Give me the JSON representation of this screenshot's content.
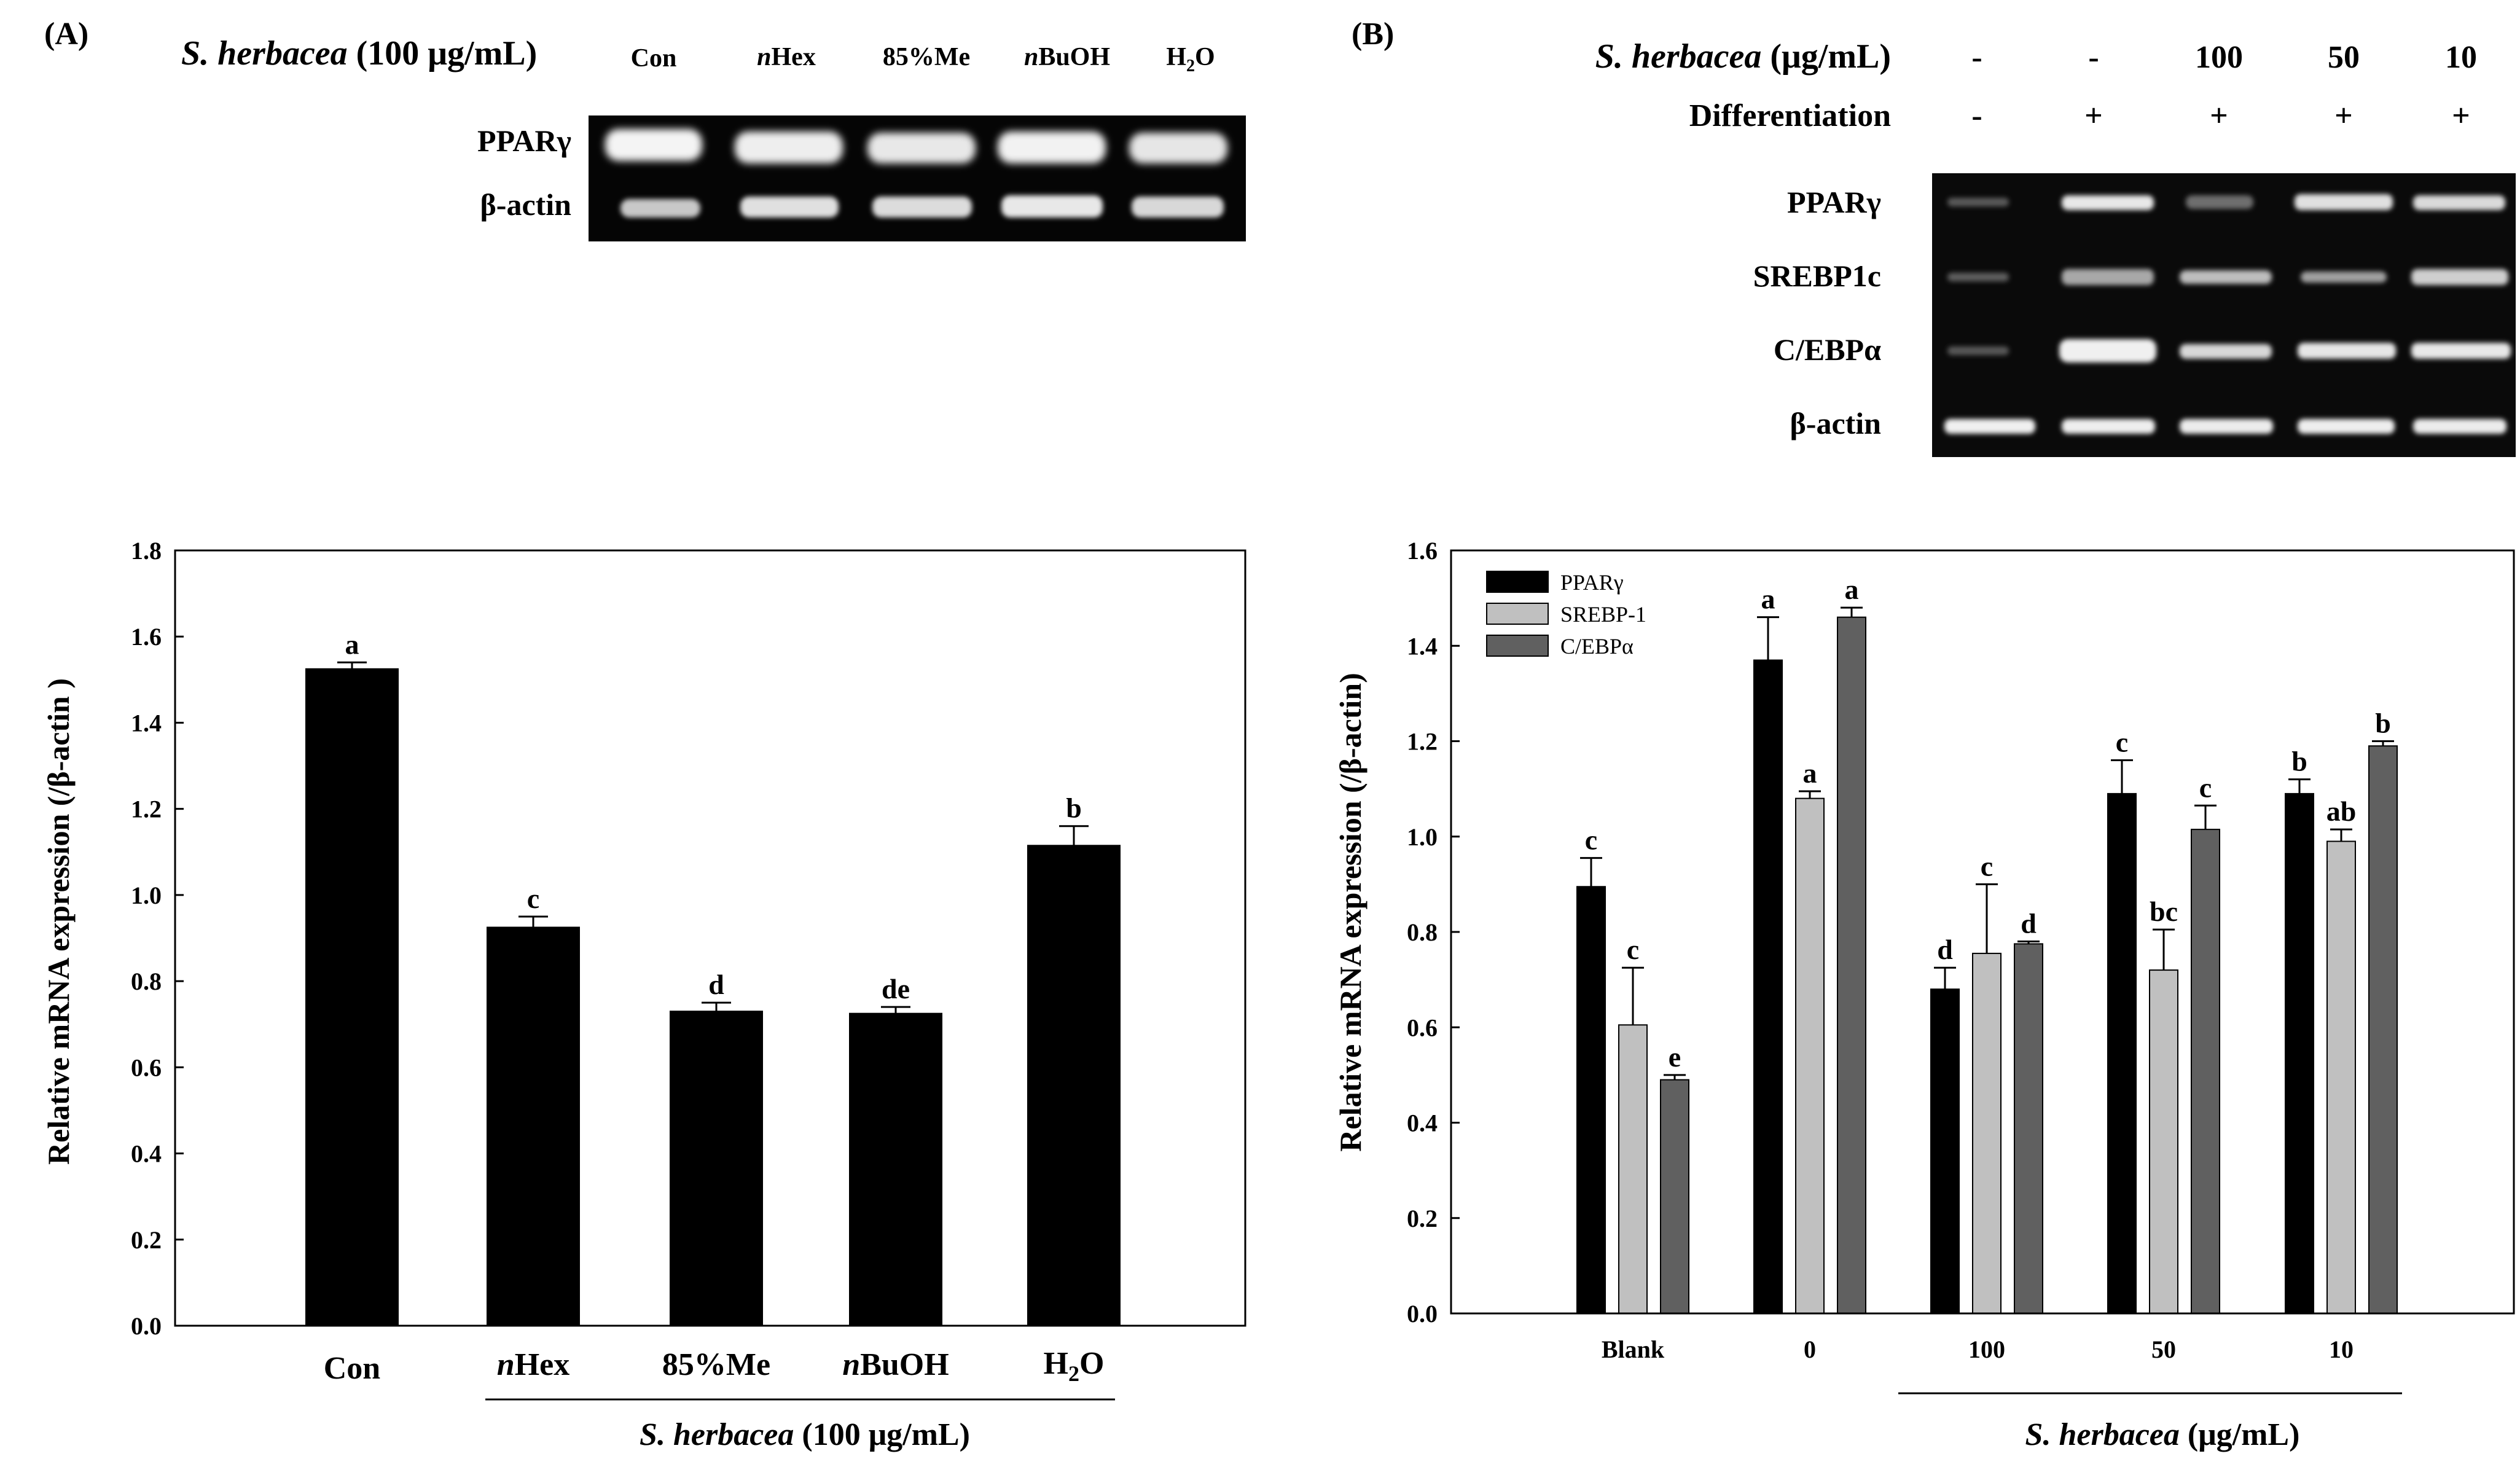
{
  "panel_a": {
    "label": "(A)",
    "gel": {
      "header_label_italic": "S. herbacea",
      "header_label_rest": " (100 μg/mL)",
      "lanes": [
        {
          "main": "Con",
          "prefix": "",
          "sub": "",
          "suffix": ""
        },
        {
          "main": "Hex",
          "prefix": "n",
          "sub": "",
          "suffix": ""
        },
        {
          "main": "85%Me",
          "prefix": "",
          "sub": "",
          "suffix": ""
        },
        {
          "main": "BuOH",
          "prefix": "n",
          "sub": "",
          "suffix": ""
        },
        {
          "main": "H",
          "prefix": "",
          "sub": "2",
          "suffix": "O"
        }
      ],
      "rows": [
        "PPARγ",
        "β-actin"
      ]
    },
    "group_label_italic": "S. herbacea",
    "group_label_rest": " (100 μg/mL)"
  },
  "panel_b": {
    "label": "(B)",
    "gel": {
      "conc_label_italic": "S. herbacea",
      "conc_label_rest": " (μg/mL)",
      "conc_values": [
        "-",
        "-",
        "100",
        "50",
        "10"
      ],
      "diff_label": "Differentiation",
      "diff_values": [
        "-",
        "+",
        "+",
        "+",
        "+"
      ],
      "rows": [
        "PPARγ",
        "SREBP1c",
        "C/EBPα",
        "β-actin"
      ]
    },
    "group_label_italic": "S. herbacea",
    "group_label_rest": " (μg/mL)"
  },
  "chart_data": [
    {
      "type": "bar",
      "title": "",
      "xlabel": "",
      "ylabel": "Relative mRNA expression (/β-actin )",
      "ylim": [
        0,
        1.8
      ],
      "yticks": [
        "0.0",
        "0.2",
        "0.4",
        "0.6",
        "0.8",
        "1.0",
        "1.2",
        "1.4",
        "1.6",
        "1.8"
      ],
      "categories": [
        {
          "main": "Con",
          "prefix": "",
          "sub": "",
          "suffix": ""
        },
        {
          "main": "Hex",
          "prefix": "n",
          "sub": "",
          "suffix": ""
        },
        {
          "main": "85%Me",
          "prefix": "",
          "sub": "",
          "suffix": ""
        },
        {
          "main": "BuOH",
          "prefix": "n",
          "sub": "",
          "suffix": ""
        },
        {
          "main": "H",
          "prefix": "",
          "sub": "2",
          "suffix": "O"
        }
      ],
      "series": [
        {
          "name": "PPARγ",
          "color": "#000000",
          "values": [
            1.525,
            0.925,
            0.73,
            0.725,
            1.115
          ],
          "errors": [
            0.015,
            0.025,
            0.02,
            0.015,
            0.045
          ],
          "labels": [
            "a",
            "c",
            "d",
            "de",
            "b"
          ]
        }
      ]
    },
    {
      "type": "bar",
      "title": "",
      "xlabel": "",
      "ylabel": "Relative mRNA expression (/β-actin)",
      "ylim": [
        0,
        1.6
      ],
      "yticks": [
        "0.0",
        "0.2",
        "0.4",
        "0.6",
        "0.8",
        "1.0",
        "1.2",
        "1.4",
        "1.6"
      ],
      "categories": [
        "Blank",
        "0",
        "100",
        "50",
        "10"
      ],
      "legend_position": "top-left",
      "series": [
        {
          "name": "PPARγ",
          "color": "#000000",
          "values": [
            0.895,
            1.37,
            0.68,
            1.09,
            1.09
          ],
          "errors": [
            0.06,
            0.09,
            0.045,
            0.07,
            0.03
          ],
          "labels": [
            "c",
            "a",
            "d",
            "c",
            "b"
          ]
        },
        {
          "name": "SREBP-1",
          "color": "#c0c0c0",
          "values": [
            0.605,
            1.08,
            0.755,
            0.72,
            0.99
          ],
          "errors": [
            0.12,
            0.015,
            0.145,
            0.085,
            0.025
          ],
          "labels": [
            "c",
            "a",
            "c",
            "bc",
            "ab"
          ]
        },
        {
          "name": "C/EBPα",
          "color": "#606060",
          "values": [
            0.49,
            1.46,
            0.775,
            1.015,
            1.19
          ],
          "errors": [
            0.01,
            0.02,
            0.005,
            0.05,
            0.01
          ],
          "labels": [
            "e",
            "a",
            "d",
            "c",
            "b"
          ]
        }
      ]
    }
  ]
}
